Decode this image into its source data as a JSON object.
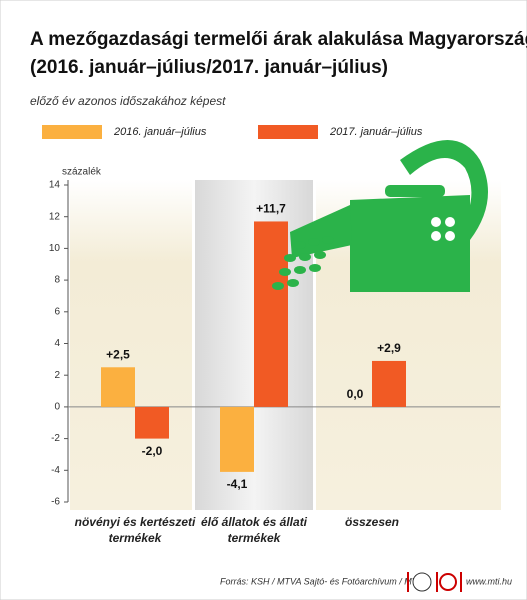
{
  "chart_data": {
    "type": "bar",
    "title": [
      "A mezőgazdasági termelői árak alakulása Magyarországon",
      "(2016. január–július/2017. január–július)"
    ],
    "subtitle": "előző év azonos időszakához képest",
    "y_label": "százalék",
    "categories": [
      "növényi és kertészeti termékek",
      "élő állatok és állati termékek",
      "összesen"
    ],
    "series": [
      {
        "name": "2016. január–július",
        "color": "#fbb040",
        "values": [
          2.5,
          -4.1,
          0.0
        ],
        "value_labels": [
          "+2,5",
          "-4,1",
          "0,0"
        ]
      },
      {
        "name": "2017. január–július",
        "color": "#f15a24",
        "values": [
          -2.0,
          11.7,
          2.9
        ],
        "value_labels": [
          "-2,0",
          "+11,7",
          "+2,9"
        ]
      }
    ],
    "ylim": [
      -6,
      14
    ],
    "yticks": [
      -6,
      -4,
      -2,
      0,
      2,
      4,
      6,
      8,
      10,
      12,
      14
    ],
    "source": "Forrás: KSH / MTVA Sajtó- és Fotóarchívum / MTI",
    "website": "www.mti.hu"
  }
}
